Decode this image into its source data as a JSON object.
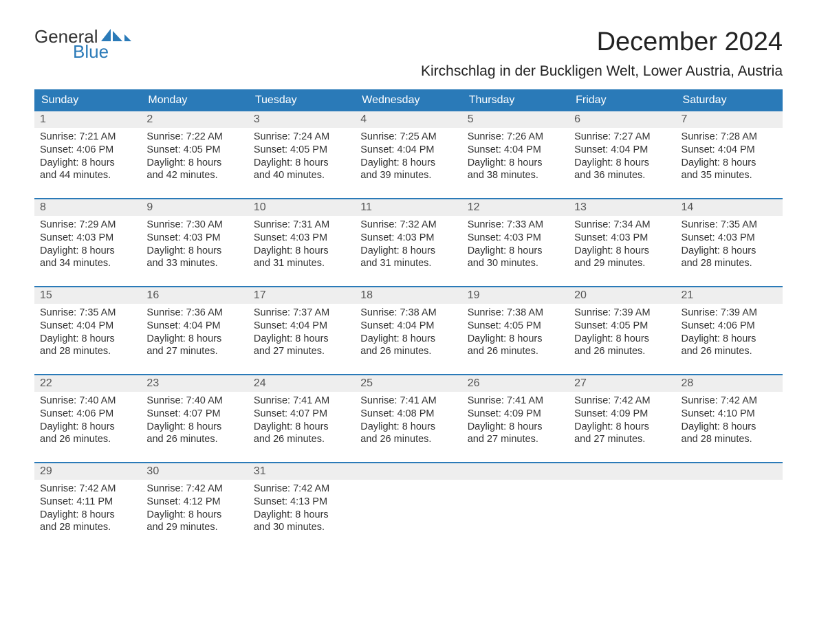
{
  "logo": {
    "part1": "General",
    "part2": "Blue"
  },
  "title": "December 2024",
  "location": "Kirchschlag in der Buckligen Welt, Lower Austria, Austria",
  "colors": {
    "header_bg": "#2a7ab8",
    "header_text": "#ffffff",
    "date_band_bg": "#eeeeee",
    "week_border": "#2a7ab8",
    "body_text": "#333333",
    "logo_blue": "#2a7ab8",
    "logo_dark": "#333333",
    "page_bg": "#ffffff"
  },
  "fonts": {
    "family": "Arial, Helvetica, sans-serif",
    "title_size_pt": 28,
    "location_size_pt": 16,
    "header_size_pt": 12,
    "cell_size_pt": 11,
    "date_size_pt": 12
  },
  "day_names": [
    "Sunday",
    "Monday",
    "Tuesday",
    "Wednesday",
    "Thursday",
    "Friday",
    "Saturday"
  ],
  "weeks": [
    [
      {
        "date": "1",
        "sunrise": "Sunrise: 7:21 AM",
        "sunset": "Sunset: 4:06 PM",
        "dl1": "Daylight: 8 hours",
        "dl2": "and 44 minutes."
      },
      {
        "date": "2",
        "sunrise": "Sunrise: 7:22 AM",
        "sunset": "Sunset: 4:05 PM",
        "dl1": "Daylight: 8 hours",
        "dl2": "and 42 minutes."
      },
      {
        "date": "3",
        "sunrise": "Sunrise: 7:24 AM",
        "sunset": "Sunset: 4:05 PM",
        "dl1": "Daylight: 8 hours",
        "dl2": "and 40 minutes."
      },
      {
        "date": "4",
        "sunrise": "Sunrise: 7:25 AM",
        "sunset": "Sunset: 4:04 PM",
        "dl1": "Daylight: 8 hours",
        "dl2": "and 39 minutes."
      },
      {
        "date": "5",
        "sunrise": "Sunrise: 7:26 AM",
        "sunset": "Sunset: 4:04 PM",
        "dl1": "Daylight: 8 hours",
        "dl2": "and 38 minutes."
      },
      {
        "date": "6",
        "sunrise": "Sunrise: 7:27 AM",
        "sunset": "Sunset: 4:04 PM",
        "dl1": "Daylight: 8 hours",
        "dl2": "and 36 minutes."
      },
      {
        "date": "7",
        "sunrise": "Sunrise: 7:28 AM",
        "sunset": "Sunset: 4:04 PM",
        "dl1": "Daylight: 8 hours",
        "dl2": "and 35 minutes."
      }
    ],
    [
      {
        "date": "8",
        "sunrise": "Sunrise: 7:29 AM",
        "sunset": "Sunset: 4:03 PM",
        "dl1": "Daylight: 8 hours",
        "dl2": "and 34 minutes."
      },
      {
        "date": "9",
        "sunrise": "Sunrise: 7:30 AM",
        "sunset": "Sunset: 4:03 PM",
        "dl1": "Daylight: 8 hours",
        "dl2": "and 33 minutes."
      },
      {
        "date": "10",
        "sunrise": "Sunrise: 7:31 AM",
        "sunset": "Sunset: 4:03 PM",
        "dl1": "Daylight: 8 hours",
        "dl2": "and 31 minutes."
      },
      {
        "date": "11",
        "sunrise": "Sunrise: 7:32 AM",
        "sunset": "Sunset: 4:03 PM",
        "dl1": "Daylight: 8 hours",
        "dl2": "and 31 minutes."
      },
      {
        "date": "12",
        "sunrise": "Sunrise: 7:33 AM",
        "sunset": "Sunset: 4:03 PM",
        "dl1": "Daylight: 8 hours",
        "dl2": "and 30 minutes."
      },
      {
        "date": "13",
        "sunrise": "Sunrise: 7:34 AM",
        "sunset": "Sunset: 4:03 PM",
        "dl1": "Daylight: 8 hours",
        "dl2": "and 29 minutes."
      },
      {
        "date": "14",
        "sunrise": "Sunrise: 7:35 AM",
        "sunset": "Sunset: 4:03 PM",
        "dl1": "Daylight: 8 hours",
        "dl2": "and 28 minutes."
      }
    ],
    [
      {
        "date": "15",
        "sunrise": "Sunrise: 7:35 AM",
        "sunset": "Sunset: 4:04 PM",
        "dl1": "Daylight: 8 hours",
        "dl2": "and 28 minutes."
      },
      {
        "date": "16",
        "sunrise": "Sunrise: 7:36 AM",
        "sunset": "Sunset: 4:04 PM",
        "dl1": "Daylight: 8 hours",
        "dl2": "and 27 minutes."
      },
      {
        "date": "17",
        "sunrise": "Sunrise: 7:37 AM",
        "sunset": "Sunset: 4:04 PM",
        "dl1": "Daylight: 8 hours",
        "dl2": "and 27 minutes."
      },
      {
        "date": "18",
        "sunrise": "Sunrise: 7:38 AM",
        "sunset": "Sunset: 4:04 PM",
        "dl1": "Daylight: 8 hours",
        "dl2": "and 26 minutes."
      },
      {
        "date": "19",
        "sunrise": "Sunrise: 7:38 AM",
        "sunset": "Sunset: 4:05 PM",
        "dl1": "Daylight: 8 hours",
        "dl2": "and 26 minutes."
      },
      {
        "date": "20",
        "sunrise": "Sunrise: 7:39 AM",
        "sunset": "Sunset: 4:05 PM",
        "dl1": "Daylight: 8 hours",
        "dl2": "and 26 minutes."
      },
      {
        "date": "21",
        "sunrise": "Sunrise: 7:39 AM",
        "sunset": "Sunset: 4:06 PM",
        "dl1": "Daylight: 8 hours",
        "dl2": "and 26 minutes."
      }
    ],
    [
      {
        "date": "22",
        "sunrise": "Sunrise: 7:40 AM",
        "sunset": "Sunset: 4:06 PM",
        "dl1": "Daylight: 8 hours",
        "dl2": "and 26 minutes."
      },
      {
        "date": "23",
        "sunrise": "Sunrise: 7:40 AM",
        "sunset": "Sunset: 4:07 PM",
        "dl1": "Daylight: 8 hours",
        "dl2": "and 26 minutes."
      },
      {
        "date": "24",
        "sunrise": "Sunrise: 7:41 AM",
        "sunset": "Sunset: 4:07 PM",
        "dl1": "Daylight: 8 hours",
        "dl2": "and 26 minutes."
      },
      {
        "date": "25",
        "sunrise": "Sunrise: 7:41 AM",
        "sunset": "Sunset: 4:08 PM",
        "dl1": "Daylight: 8 hours",
        "dl2": "and 26 minutes."
      },
      {
        "date": "26",
        "sunrise": "Sunrise: 7:41 AM",
        "sunset": "Sunset: 4:09 PM",
        "dl1": "Daylight: 8 hours",
        "dl2": "and 27 minutes."
      },
      {
        "date": "27",
        "sunrise": "Sunrise: 7:42 AM",
        "sunset": "Sunset: 4:09 PM",
        "dl1": "Daylight: 8 hours",
        "dl2": "and 27 minutes."
      },
      {
        "date": "28",
        "sunrise": "Sunrise: 7:42 AM",
        "sunset": "Sunset: 4:10 PM",
        "dl1": "Daylight: 8 hours",
        "dl2": "and 28 minutes."
      }
    ],
    [
      {
        "date": "29",
        "sunrise": "Sunrise: 7:42 AM",
        "sunset": "Sunset: 4:11 PM",
        "dl1": "Daylight: 8 hours",
        "dl2": "and 28 minutes."
      },
      {
        "date": "30",
        "sunrise": "Sunrise: 7:42 AM",
        "sunset": "Sunset: 4:12 PM",
        "dl1": "Daylight: 8 hours",
        "dl2": "and 29 minutes."
      },
      {
        "date": "31",
        "sunrise": "Sunrise: 7:42 AM",
        "sunset": "Sunset: 4:13 PM",
        "dl1": "Daylight: 8 hours",
        "dl2": "and 30 minutes."
      },
      null,
      null,
      null,
      null
    ]
  ]
}
